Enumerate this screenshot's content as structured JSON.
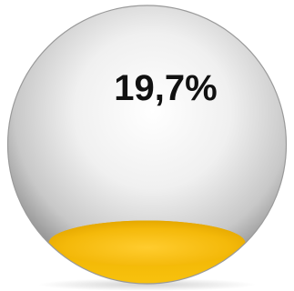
{
  "chart_data": {
    "type": "gauge",
    "value": 19.7,
    "label": "19,7%",
    "colors": {
      "fill": "#F2B705",
      "fill_dark": "#C98F00",
      "fill_light": "#FFD24A",
      "globe": "#BFBFBF"
    }
  }
}
